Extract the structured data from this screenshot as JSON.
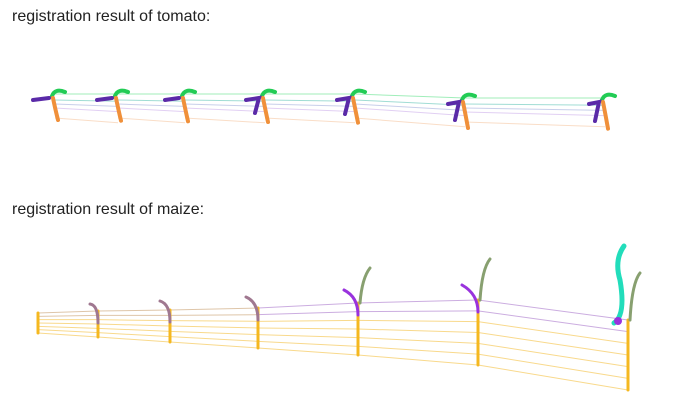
{
  "captions": {
    "tomato": "registration result of tomato:",
    "maize": "registration result of maize:"
  },
  "colors": {
    "tomato_leaf": "#22cc55",
    "tomato_purple": "#5a2aa8",
    "tomato_stem": "#f0903a",
    "maize_yellow": "#f5b820",
    "maize_purple": "#9933dd",
    "maize_teal": "#22ddbb"
  }
}
